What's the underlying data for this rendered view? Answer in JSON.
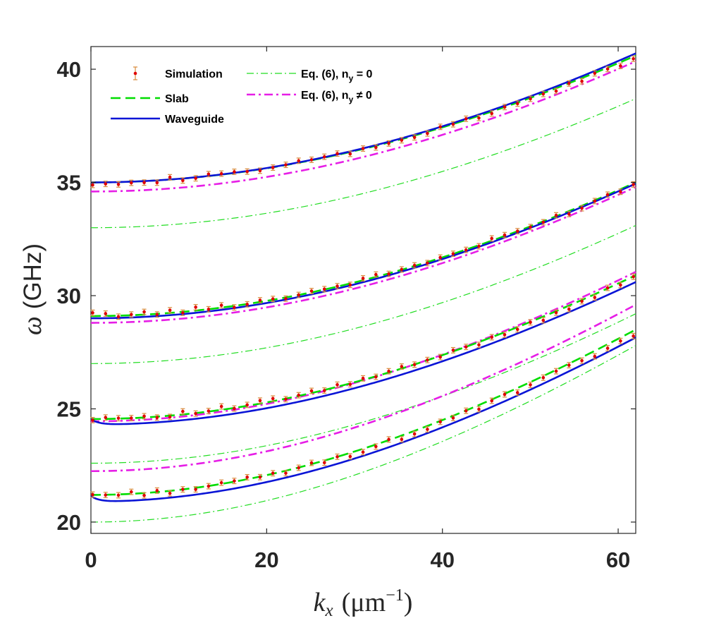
{
  "chart_data": {
    "type": "line",
    "xlabel": {
      "var": "k",
      "sub": "x",
      "unit_pre": "(μm",
      "unit_sup": "−1",
      "unit_post": ")"
    },
    "ylabel": {
      "var": "ω",
      "unit": "(GHz)"
    },
    "xlim": [
      0,
      62
    ],
    "ylim": [
      19.5,
      41
    ],
    "xticks": [
      0,
      20,
      40,
      60
    ],
    "yticks": [
      20,
      25,
      30,
      35,
      40
    ],
    "xtick_labels": [
      "0",
      "20",
      "40",
      "60"
    ],
    "ytick_labels": [
      "20",
      "25",
      "30",
      "35",
      "40"
    ],
    "legend": {
      "position": "top-left",
      "entries": [
        {
          "key": "simulation",
          "label": "Simulation"
        },
        {
          "key": "eq6_ny0",
          "label": "Eq. (6), n",
          "sub": "y",
          "suffix": " = 0"
        },
        {
          "key": "slab",
          "label": "Slab"
        },
        {
          "key": "eq6_nyne0",
          "label": "Eq. (6), n",
          "sub": "y",
          "suffix": " ≠ 0"
        },
        {
          "key": "waveguide",
          "label": "Waveguide"
        }
      ]
    },
    "series": [
      {
        "name": "Simulation",
        "key": "simulation",
        "style": "errorbar",
        "color": "#e00000",
        "errcolor": "#d98a3a",
        "err": 0.12,
        "modes": [
          {
            "f0": 35.0,
            "f62": 40.5
          },
          {
            "f0": 29.15,
            "f62": 34.95
          },
          {
            "f0": 24.6,
            "f62": 30.8
          },
          {
            "f0": 21.2,
            "f62": 28.3
          }
        ]
      },
      {
        "name": "Slab",
        "key": "slab",
        "style": "dashed",
        "color": "#00dd00",
        "modes": [
          {
            "f0": 35.0,
            "f62": 40.6
          },
          {
            "f0": 29.1,
            "f62": 35.0
          },
          {
            "f0": 24.55,
            "f62": 30.9
          },
          {
            "f0": 21.2,
            "f62": 28.5
          }
        ]
      },
      {
        "name": "Waveguide",
        "key": "waveguide",
        "style": "solid",
        "color": "#0a14d6",
        "modes": [
          {
            "f0": 35.0,
            "f62": 40.7
          },
          {
            "f0": 29.0,
            "f62": 34.95
          },
          {
            "f0": 24.3,
            "f62": 30.6,
            "start": 24.55
          },
          {
            "f0": 20.9,
            "f62": 28.15,
            "start": 21.15
          }
        ]
      },
      {
        "name": "Eq. (6), n_y = 0",
        "key": "eq6_ny0",
        "style": "dashdot-thin",
        "color": "#22dd22",
        "modes": [
          {
            "f0": 33.0,
            "f62": 38.7
          },
          {
            "f0": 27.0,
            "f62": 33.1
          },
          {
            "f0": 22.6,
            "f62": 29.2
          },
          {
            "f0": 20.0,
            "f62": 27.8
          }
        ]
      },
      {
        "name": "Eq. (6), n_y ≠ 0",
        "key": "eq6_nyne0",
        "style": "dashdot",
        "color": "#e61ee6",
        "modes": [
          {
            "f0": 34.6,
            "f62": 40.35
          },
          {
            "f0": 28.8,
            "f62": 34.8
          },
          {
            "f0": 24.45,
            "f62": 31.05
          },
          {
            "f0": 22.25,
            "f62": 29.6
          }
        ]
      }
    ]
  }
}
